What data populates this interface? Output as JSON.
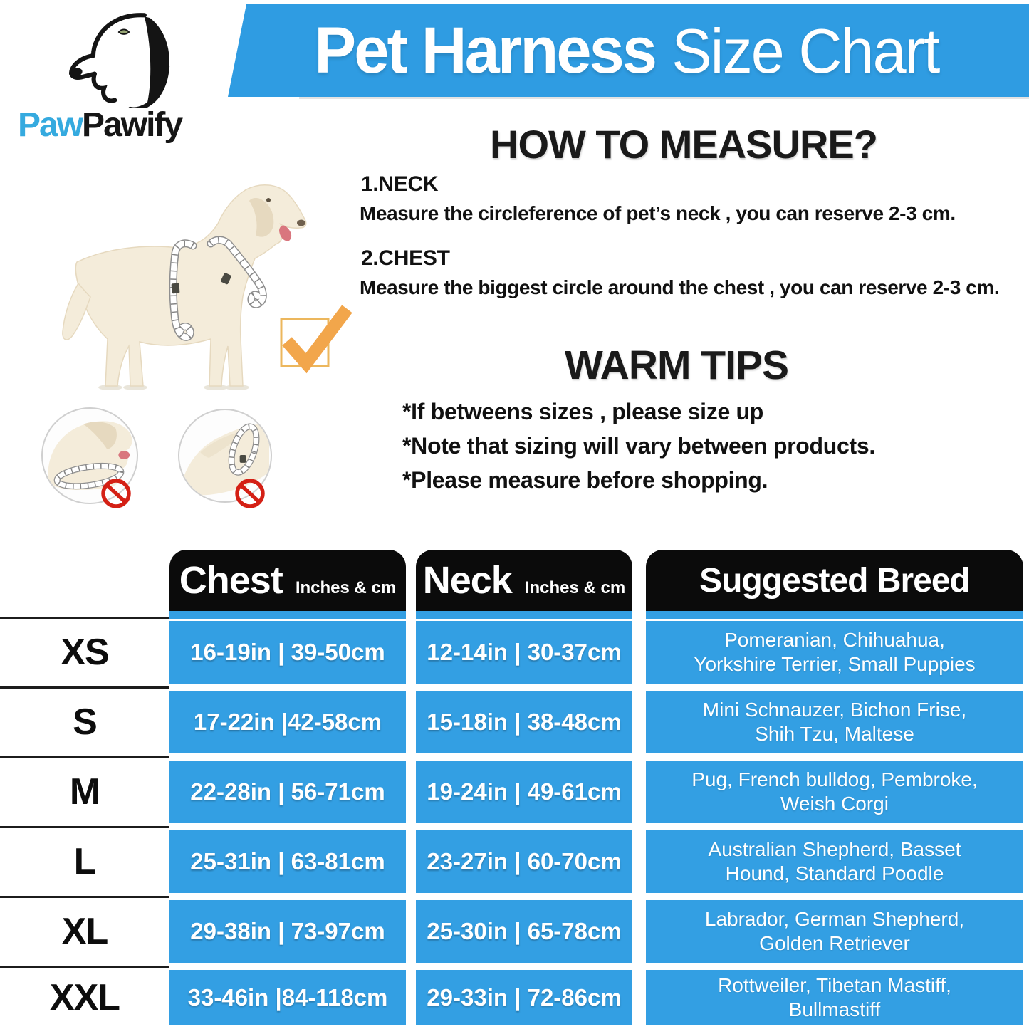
{
  "colors": {
    "banner_blue": "#2f9ce2",
    "table_blue": "#339fe3",
    "logo_blue": "#35aadf",
    "header_black": "#0b0b0b",
    "check_orange": "#f2a64b",
    "check_border": "#ecb75d",
    "prohibit_red": "#d42015",
    "dog_cream": "#f4ecda",
    "dog_shade": "#e6d9bf",
    "tongue_pink": "#d9767e",
    "line_dark": "#1c1c1c"
  },
  "logo": {
    "brand_blue": "Paw",
    "brand_dark": "Pawify"
  },
  "banner": {
    "title_bold": "Pet Harness",
    "title_light": "Size Chart"
  },
  "how_to_measure": {
    "heading": "HOW TO MEASURE?",
    "steps": [
      {
        "label": "1.NECK",
        "text": "Measure the circleference of pet’s neck , you can reserve 2-3 cm."
      },
      {
        "label": "2.CHEST",
        "text": "Measure the biggest circle around the chest , you can reserve 2-3 cm."
      }
    ]
  },
  "warm_tips": {
    "heading": "WARM TIPS",
    "tips": [
      "*If betweens sizes , please size up",
      "*Note that sizing will vary between products.",
      "*Please measure before shopping."
    ]
  },
  "table": {
    "columns": [
      {
        "label": "Chest",
        "sublabel": "Inches & cm"
      },
      {
        "label": "Neck",
        "sublabel": "Inches & cm"
      },
      {
        "label": "Suggested Breed",
        "sublabel": ""
      }
    ],
    "rows": [
      {
        "size": "XS",
        "chest": "16-19in | 39-50cm",
        "neck": "12-14in | 30-37cm",
        "breed_lines": [
          "Pomeranian,  Chihuahua,",
          "Yorkshire Terrier,  Small Puppies"
        ]
      },
      {
        "size": "S",
        "chest": "17-22in |42-58cm",
        "neck": "15-18in | 38-48cm",
        "breed_lines": [
          "Mini Schnauzer,  Bichon Frise,",
          "Shih Tzu,  Maltese"
        ]
      },
      {
        "size": "M",
        "chest": "22-28in | 56-71cm",
        "neck": "19-24in | 49-61cm",
        "breed_lines": [
          "Pug,  French bulldog,  Pembroke,",
          "Weish Corgi"
        ]
      },
      {
        "size": "L",
        "chest": "25-31in | 63-81cm",
        "neck": "23-27in | 60-70cm",
        "breed_lines": [
          "Australian Shepherd,  Basset",
          "Hound,  Standard Poodle"
        ]
      },
      {
        "size": "XL",
        "chest": "29-38in | 73-97cm",
        "neck": "25-30in | 65-78cm",
        "breed_lines": [
          "Labrador,  German Shepherd,",
          "Golden Retriever"
        ]
      },
      {
        "size": "XXL",
        "chest": "33-46in |84-118cm",
        "neck": "29-33in | 72-86cm",
        "breed_lines": [
          "Rottweiler,  Tibetan Mastiff,",
          "Bullmastiff"
        ]
      }
    ]
  }
}
